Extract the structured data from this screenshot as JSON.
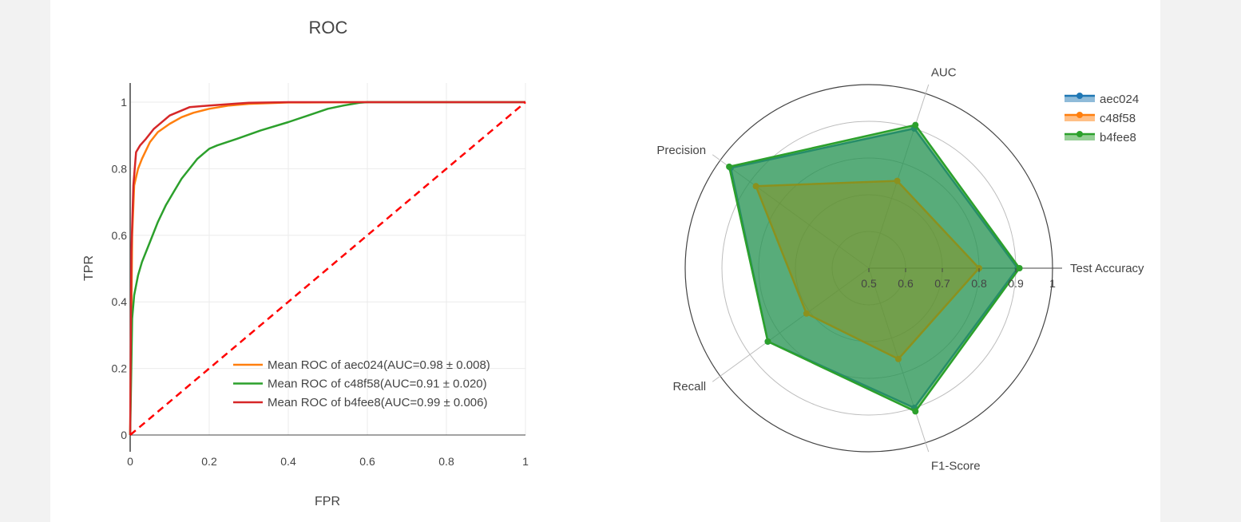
{
  "chart_data": [
    {
      "type": "line",
      "title": "ROC",
      "xlabel": "FPR",
      "ylabel": "TPR",
      "xlim": [
        0,
        1
      ],
      "ylim": [
        0,
        1
      ],
      "x_ticks": [
        0,
        0.2,
        0.4,
        0.6,
        0.8,
        1
      ],
      "x_tick_labels": [
        "0",
        "0.2",
        "0.4",
        "0.6",
        "0.8",
        "1"
      ],
      "y_ticks": [
        0,
        0.2,
        0.4,
        0.6,
        0.8,
        1
      ],
      "y_tick_labels": [
        "0",
        "0.2",
        "0.4",
        "0.6",
        "0.8",
        "1"
      ],
      "grid": true,
      "legend_position": "bottom-right",
      "series": [
        {
          "name": "Mean ROC of aec024(AUC=0.98 ± 0.008)",
          "color": "#ff7f0e",
          "x": [
            0,
            0.005,
            0.01,
            0.02,
            0.03,
            0.05,
            0.07,
            0.1,
            0.13,
            0.16,
            0.2,
            0.25,
            0.3,
            0.4,
            0.6,
            1
          ],
          "y": [
            0,
            0.6,
            0.75,
            0.8,
            0.83,
            0.88,
            0.91,
            0.935,
            0.955,
            0.968,
            0.98,
            0.99,
            0.995,
            0.999,
            1,
            1
          ]
        },
        {
          "name": "Mean ROC of c48f58(AUC=0.91 ± 0.020)",
          "color": "#2ca02c",
          "x": [
            0,
            0.005,
            0.01,
            0.02,
            0.03,
            0.05,
            0.07,
            0.09,
            0.11,
            0.13,
            0.15,
            0.17,
            0.2,
            0.22,
            0.27,
            0.33,
            0.4,
            0.45,
            0.5,
            0.54,
            0.58,
            0.6,
            1
          ],
          "y": [
            0,
            0.35,
            0.42,
            0.48,
            0.52,
            0.58,
            0.64,
            0.69,
            0.73,
            0.77,
            0.8,
            0.83,
            0.86,
            0.87,
            0.89,
            0.915,
            0.94,
            0.96,
            0.98,
            0.99,
            0.998,
            1,
            1
          ]
        },
        {
          "name": "Mean ROC of b4fee8(AUC=0.99 ± 0.006)",
          "color": "#d62728",
          "x": [
            0,
            0.003,
            0.008,
            0.015,
            0.025,
            0.04,
            0.06,
            0.1,
            0.15,
            0.2,
            0.3,
            0.4,
            1
          ],
          "y": [
            0,
            0.55,
            0.75,
            0.85,
            0.87,
            0.89,
            0.92,
            0.96,
            0.985,
            0.99,
            0.998,
            1,
            1
          ]
        },
        {
          "name": "",
          "color": "#ff0000",
          "dash": true,
          "x": [
            0,
            1
          ],
          "y": [
            0,
            1
          ]
        }
      ]
    },
    {
      "type": "radar",
      "axes": [
        "Test Accuracy",
        "AUC",
        "Precision",
        "Recall",
        "F1-Score"
      ],
      "radial_range": [
        0.5,
        1
      ],
      "radial_ticks": [
        0.5,
        0.6,
        0.7,
        0.8,
        0.9,
        1
      ],
      "radial_tick_labels": [
        "0.5",
        "0.6",
        "0.7",
        "0.8",
        "0.9",
        "1"
      ],
      "legend_position": "top-right",
      "series": [
        {
          "name": "aec024",
          "color": "#1f77b4",
          "values": [
            0.905,
            0.9,
            0.965,
            0.84,
            0.9
          ]
        },
        {
          "name": "c48f58",
          "color": "#ff7f0e",
          "values": [
            0.8,
            0.75,
            0.88,
            0.71,
            0.76
          ]
        },
        {
          "name": "b4fee8",
          "color": "#2ca02c",
          "values": [
            0.91,
            0.91,
            0.97,
            0.84,
            0.91
          ]
        }
      ]
    }
  ]
}
